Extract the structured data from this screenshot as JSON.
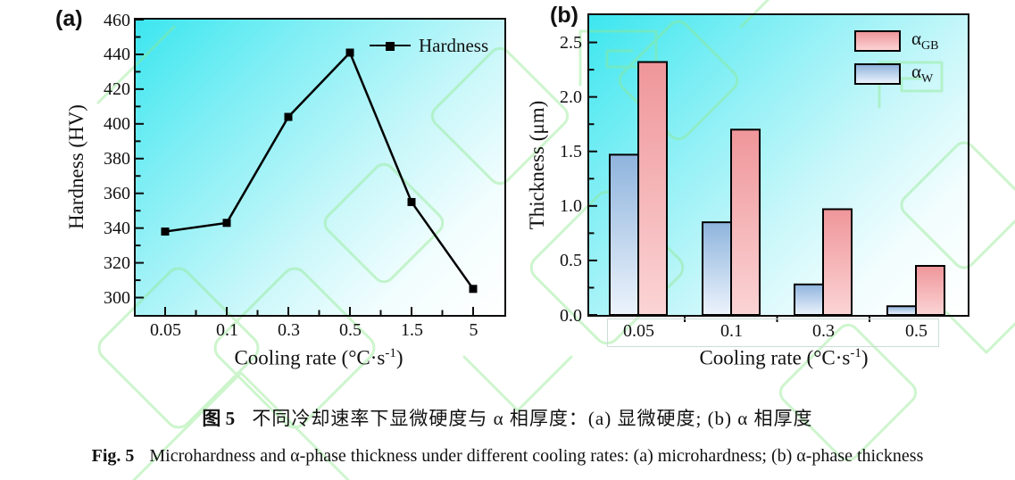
{
  "panels": {
    "a": {
      "label": "(a)",
      "ylabel": "Hardness (HV)",
      "xlabel_pre": "Cooling rate (°C·s",
      "xlabel_sup": "-1",
      "xlabel_post": ")",
      "legend_label": "Hardness"
    },
    "b": {
      "label": "(b)",
      "ylabel": "Thickness (μm)",
      "xlabel_pre": "Cooling rate (°C·s",
      "xlabel_sup": "-1",
      "xlabel_post": ")",
      "legend": [
        {
          "base": "α",
          "sub": "GB"
        },
        {
          "base": "α",
          "sub": "W"
        }
      ]
    }
  },
  "caption": {
    "zh_label": "图 5",
    "zh_text": "不同冷却速率下显微硬度与 α 相厚度：(a) 显微硬度; (b) α 相厚度",
    "en_label": "Fig. 5",
    "en_text": "Microhardness and α-phase thickness under different cooling rates: (a) microhardness; (b) α-phase thickness"
  },
  "colors": {
    "plot_gradient_start": "#3ce6ef",
    "plot_gradient_end": "#ffffff",
    "line": "#000000",
    "alpha_gb_top": "#ef969a",
    "alpha_gb_bottom": "#fbd4d5",
    "alpha_w_top": "#8fb4dd",
    "alpha_w_bottom": "#ecf3fc",
    "watermark": "#8fe98f",
    "category_box_border": "#ccdcd8"
  },
  "chart_data": [
    {
      "type": "line",
      "panel": "(a)",
      "title": "",
      "xlabel": "Cooling rate (°C·s⁻¹)",
      "ylabel": "Hardness (HV)",
      "categories": [
        "0.05",
        "0.1",
        "0.3",
        "0.5",
        "1.5",
        "5"
      ],
      "series": [
        {
          "name": "Hardness",
          "color": "#000000",
          "marker": "filled-square",
          "values": [
            338,
            343,
            404,
            441,
            355,
            305
          ]
        }
      ],
      "ylim": [
        290,
        460
      ],
      "yticks": [
        300,
        320,
        340,
        360,
        380,
        400,
        420,
        440,
        460
      ],
      "grid": false,
      "legend_position": "top-right-inside"
    },
    {
      "type": "bar",
      "panel": "(b)",
      "title": "",
      "xlabel": "Cooling rate (°C·s⁻¹)",
      "ylabel": "Thickness (μm)",
      "categories": [
        "0.05",
        "0.1",
        "0.3",
        "0.5"
      ],
      "series": [
        {
          "name": "αGB",
          "color_top": "#ef969a",
          "color_bottom": "#fbd4d5",
          "values": [
            2.32,
            1.7,
            0.97,
            0.45
          ]
        },
        {
          "name": "αW",
          "color_top": "#8fb4dd",
          "color_bottom": "#ecf3fc",
          "values": [
            1.47,
            0.85,
            0.28,
            0.08
          ]
        }
      ],
      "bar_order_left_to_right": [
        "αW",
        "αGB"
      ],
      "ylim": [
        0,
        2.75
      ],
      "yticks": [
        "0.0",
        "0.5",
        "1.0",
        "1.5",
        "2.0",
        "2.5"
      ],
      "grid": false,
      "legend_position": "top-right-inside"
    }
  ]
}
